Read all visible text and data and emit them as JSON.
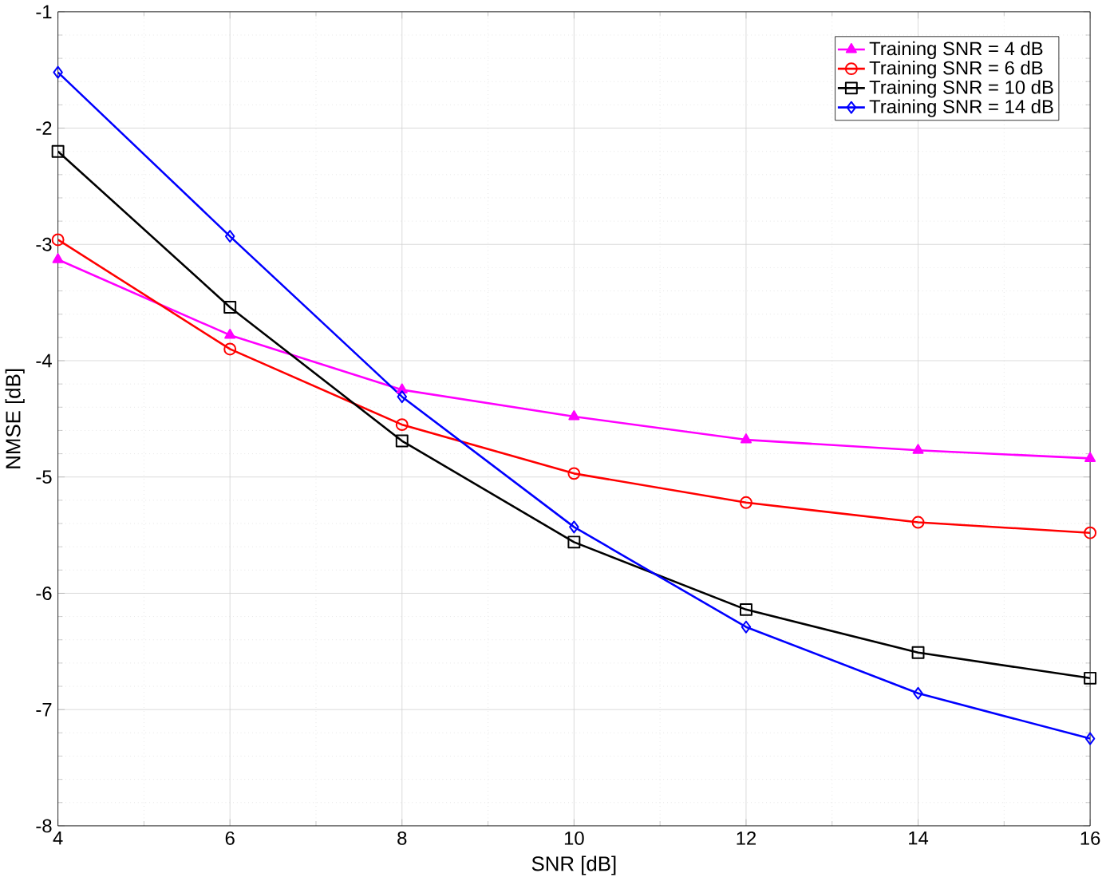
{
  "chart_data": {
    "type": "line",
    "xlabel": "SNR [dB]",
    "ylabel": "NMSE [dB]",
    "x": [
      4,
      6,
      8,
      10,
      12,
      14,
      16
    ],
    "series": [
      {
        "name": "Training SNR = 4 dB",
        "color": "#ff00ff",
        "marker": "triangle",
        "values": [
          -3.13,
          -3.78,
          -4.25,
          -4.48,
          -4.68,
          -4.77,
          -4.84
        ]
      },
      {
        "name": "Training SNR = 6 dB",
        "color": "#ff0000",
        "marker": "circle",
        "values": [
          -2.96,
          -3.9,
          -4.55,
          -4.97,
          -5.22,
          -5.39,
          -5.48
        ]
      },
      {
        "name": "Training SNR = 10 dB",
        "color": "#000000",
        "marker": "square",
        "values": [
          -2.2,
          -3.54,
          -4.69,
          -5.56,
          -6.14,
          -6.51,
          -6.73
        ]
      },
      {
        "name": "Training SNR = 14 dB",
        "color": "#0000ff",
        "marker": "diamond",
        "values": [
          -1.52,
          -2.93,
          -4.31,
          -5.43,
          -6.29,
          -6.86,
          -7.25
        ]
      }
    ],
    "xlim": [
      4,
      16
    ],
    "ylim": [
      -8,
      -1
    ],
    "xticks": [
      4,
      6,
      8,
      10,
      12,
      14,
      16
    ],
    "yticks": [
      -8,
      -7,
      -6,
      -5,
      -4,
      -3,
      -2,
      -1
    ],
    "grid": true,
    "legend": "top right",
    "line_style": "solid"
  }
}
